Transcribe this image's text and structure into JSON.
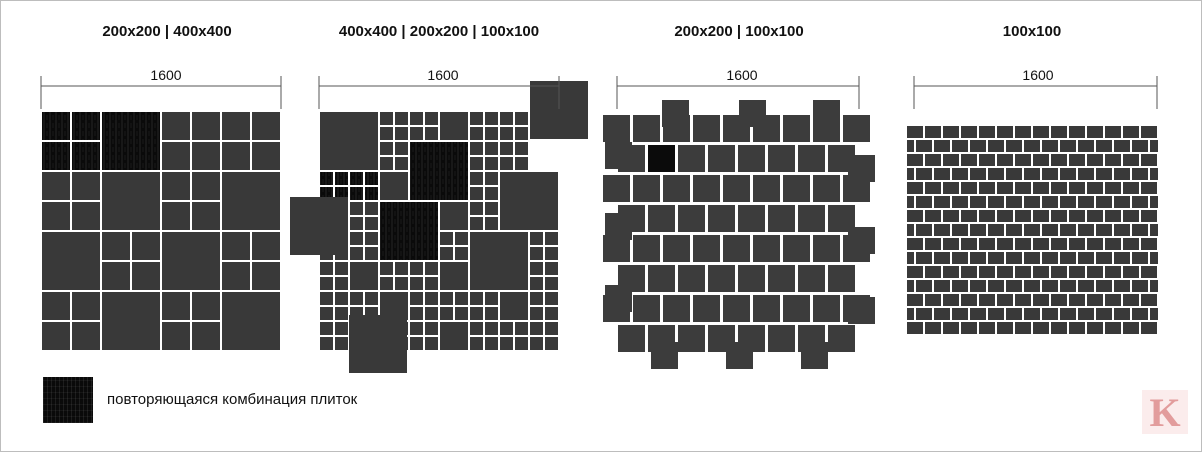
{
  "colors": {
    "tile": "#393939",
    "tile_alt": "#3c3c3c",
    "repeat": "#0b0b0b",
    "dim_line": "#555555",
    "logo": "#e8a5a5"
  },
  "panels": [
    {
      "title": "200x200 | 400x400",
      "dimension": "1600"
    },
    {
      "title": "400x400 | 200x200 | 100x100",
      "dimension": "1600"
    },
    {
      "title": "200x200 | 100x100",
      "dimension": "1600"
    },
    {
      "title": "100x100",
      "dimension": "1600"
    }
  ],
  "legend": {
    "text": "повторяющаяся комбинация плиток"
  },
  "logo": {
    "letter": "K",
    "icon": "k-brand-logo-icon"
  }
}
